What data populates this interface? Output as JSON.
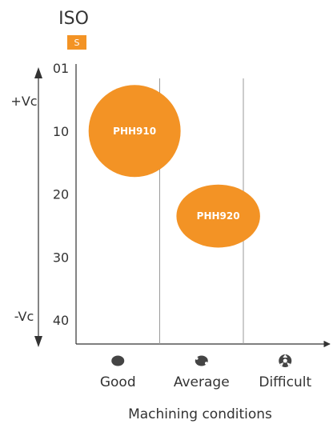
{
  "chart_data": {
    "type": "scatter",
    "header": {
      "title": "ISO",
      "badge": "S"
    },
    "speed_axis": {
      "top_label": "+Vc",
      "bottom_label": "-Vc"
    },
    "y_ticks": [
      "01",
      "10",
      "20",
      "30",
      "40"
    ],
    "ylim": [
      0,
      40
    ],
    "categories": [
      "Good",
      "Average",
      "Difficult"
    ],
    "condition_icons": [
      "good-condition-icon",
      "average-condition-icon",
      "difficult-condition-icon"
    ],
    "xlabel": "Machining conditions",
    "series": [
      {
        "name": "PHH910",
        "x_center": 0.7,
        "x_half_width": 0.55,
        "y_center": 10,
        "y_half_height": 7.3,
        "color": "#f39325"
      },
      {
        "name": "PHH920",
        "x_center": 1.7,
        "x_half_width": 0.5,
        "y_center": 23.5,
        "y_half_height": 5.0,
        "color": "#f39325"
      }
    ],
    "grid": {
      "vertical_lines": true
    },
    "colors": {
      "accent": "#f39325",
      "axis": "#333333",
      "grid": "#9a9a9a",
      "icon": "#444444"
    }
  }
}
